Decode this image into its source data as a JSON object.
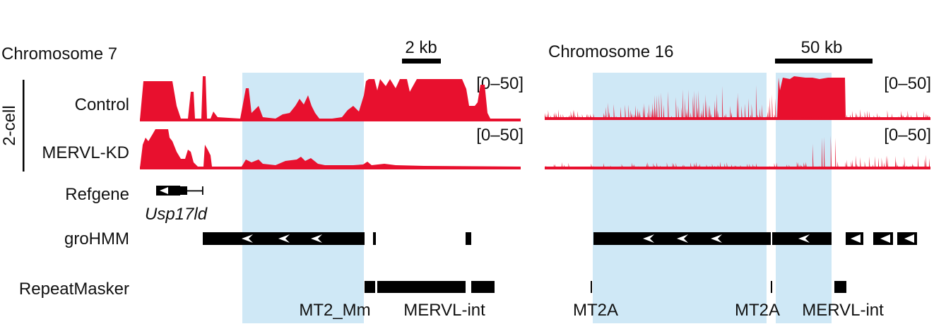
{
  "panels": {
    "left": {
      "chromosome": "Chromosome 7",
      "scale": "2 kb"
    },
    "right": {
      "chromosome": "Chromosome 16",
      "scale": "50 kb"
    }
  },
  "group_label": "2-cell",
  "tracks": {
    "control": {
      "label": "Control",
      "range": "[0–50]"
    },
    "kd": {
      "label": "MERVL-KD",
      "range": "[0–50]"
    },
    "refgene": {
      "label": "Refgene",
      "gene": "Usp17ld"
    },
    "grohmm": {
      "label": "groHMM"
    },
    "repeatmasker": {
      "label": "RepeatMasker"
    }
  },
  "repeats": {
    "left": [
      "MT2_Mm",
      "MERVL-int"
    ],
    "right": [
      "MT2A",
      "MT2A",
      "MERVL-int"
    ]
  },
  "colors": {
    "signal": "#e8102e",
    "highlight": "#cfe8f6",
    "feature": "#000000"
  }
}
